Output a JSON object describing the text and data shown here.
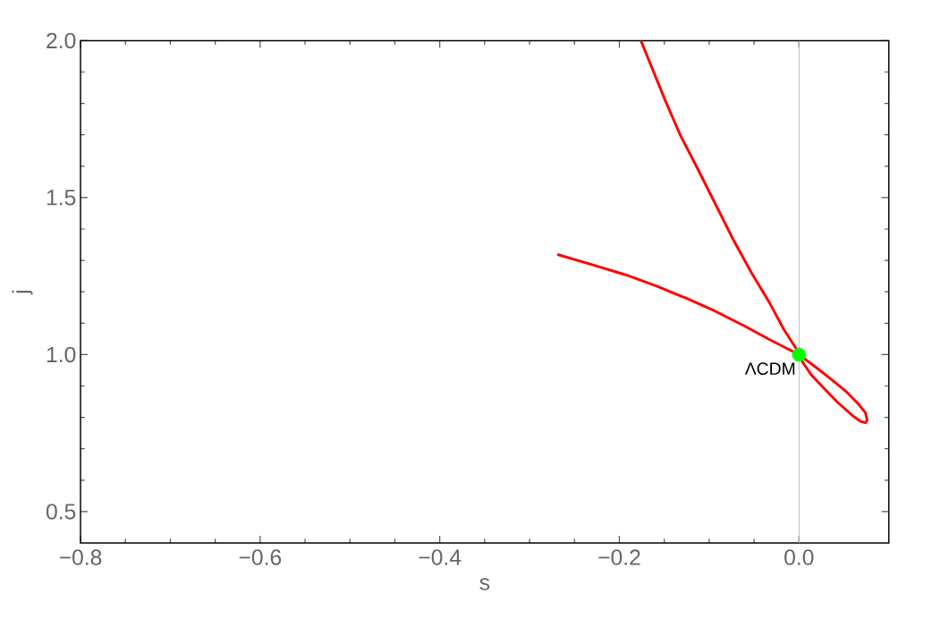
{
  "chart_data": {
    "type": "line",
    "xlabel": "s",
    "ylabel": "j",
    "xlim": [
      -0.8,
      0.1
    ],
    "ylim": [
      0.4,
      2.0
    ],
    "xticks": [
      {
        "value": -0.8,
        "label": "−0.8"
      },
      {
        "value": -0.6,
        "label": "−0.6"
      },
      {
        "value": -0.4,
        "label": "−0.4"
      },
      {
        "value": -0.2,
        "label": "−0.2"
      },
      {
        "value": 0,
        "label": "0.0"
      }
    ],
    "yticks": [
      {
        "value": 0.5,
        "label": "0.5"
      },
      {
        "value": 1,
        "label": "1.0"
      },
      {
        "value": 1.5,
        "label": "1.5"
      },
      {
        "value": 2,
        "label": "2.0"
      }
    ],
    "series": [
      {
        "color": "#ff0000",
        "x": [
          -0.176,
          -0.149,
          -0.132,
          -0.113,
          -0.093,
          -0.073,
          -0.053,
          -0.033,
          -0.017,
          -0.002,
          0,
          0.005,
          0.013,
          0.027,
          0.043,
          0.06,
          0.068,
          0.074,
          0.076,
          0.074,
          0.066,
          0.053,
          0.037,
          0.02,
          0,
          -0.013,
          -0.033,
          -0.06,
          -0.093,
          -0.126,
          -0.159,
          -0.193,
          -0.232,
          -0.268
        ],
        "values": [
          2.0,
          1.81,
          1.698,
          1.593,
          1.479,
          1.365,
          1.261,
          1.166,
          1.081,
          1.014,
          1.0,
          0.972,
          0.938,
          0.895,
          0.848,
          0.805,
          0.788,
          0.783,
          0.791,
          0.815,
          0.843,
          0.881,
          0.919,
          0.957,
          1.0,
          1.019,
          1.048,
          1.09,
          1.138,
          1.18,
          1.219,
          1.254,
          1.288,
          1.318
        ]
      },
      {
        "type": "scatter",
        "color": "#00ff00",
        "marker": "circle",
        "x": [
          0
        ],
        "values": [
          1
        ]
      }
    ],
    "ref_lines": [
      {
        "axis": "x",
        "value": 0,
        "color": "#bbbbbb"
      }
    ],
    "annotations": [
      {
        "text": "ΛCDM",
        "x": 0,
        "y": 1
      }
    ]
  }
}
